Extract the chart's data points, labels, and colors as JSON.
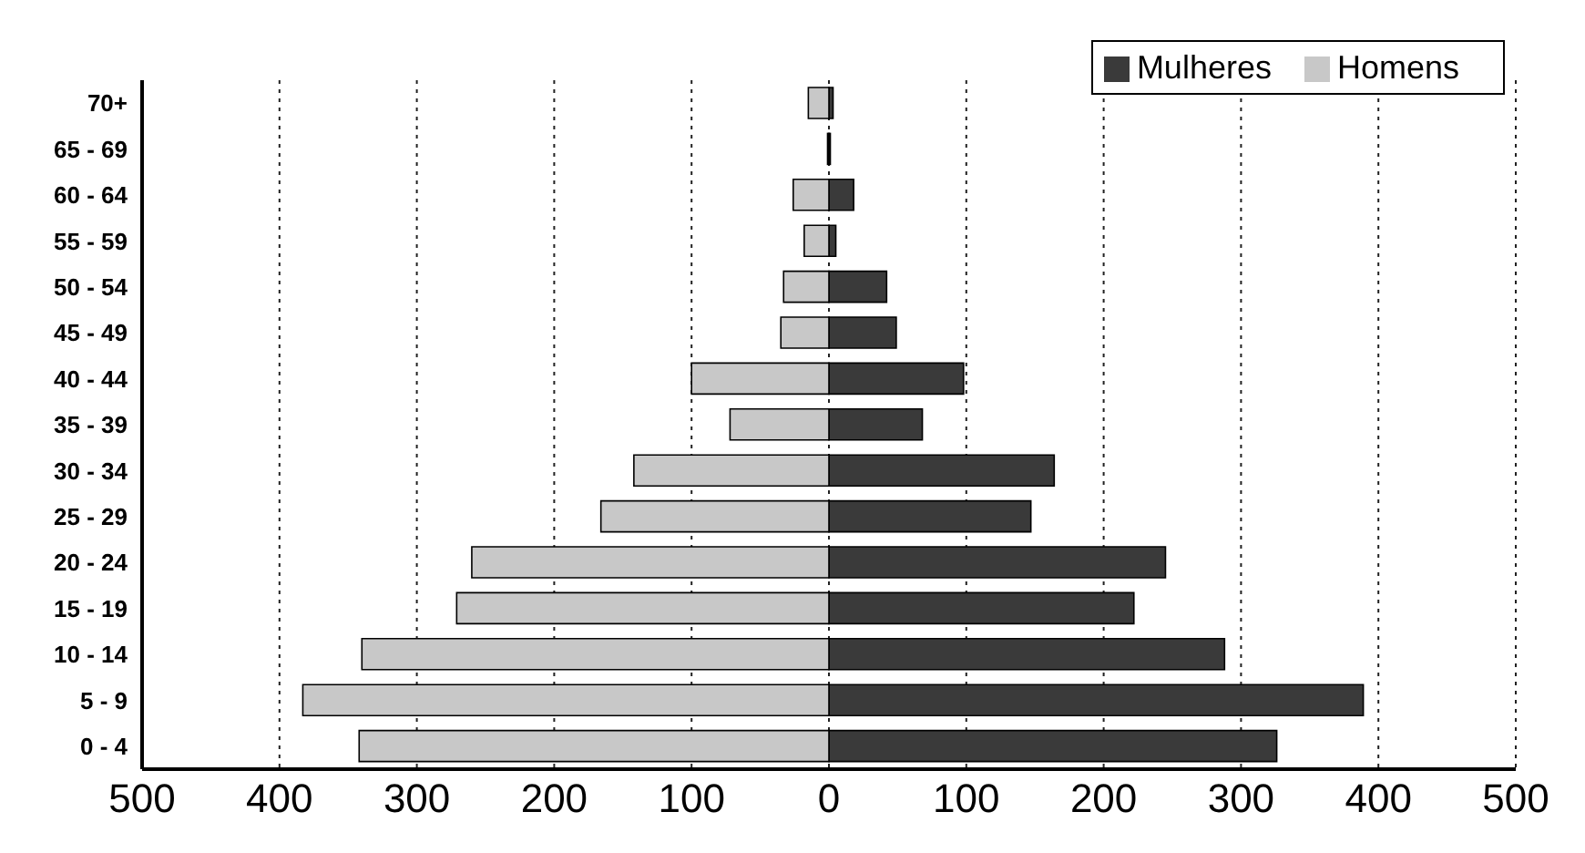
{
  "chart_data": {
    "type": "bar",
    "orientation": "horizontal",
    "stacked": true,
    "categories": [
      "70+",
      "65 - 69",
      "60 - 64",
      "55 - 59",
      "50 - 54",
      "45 - 49",
      "40 - 44",
      "35 - 39",
      "30 - 34",
      "25 - 29",
      "20 - 24",
      "15 - 19",
      "10 - 14",
      "5 - 9",
      "0 - 4"
    ],
    "series": [
      {
        "name": "Mulheres",
        "color": "#3a3a3a",
        "values": [
          3,
          1,
          18,
          5,
          42,
          49,
          98,
          68,
          164,
          147,
          245,
          222,
          288,
          389,
          326
        ]
      },
      {
        "name": "Homens",
        "color": "#c8c8c8",
        "values": [
          -15,
          -1,
          -26,
          -18,
          -33,
          -35,
          -100,
          -72,
          -142,
          -166,
          -260,
          -271,
          -340,
          -383,
          -342
        ]
      }
    ],
    "xlim": [
      -500,
      500
    ],
    "xticks": [
      {
        "value": -500,
        "label": "500"
      },
      {
        "value": -400,
        "label": "400"
      },
      {
        "value": -300,
        "label": "300"
      },
      {
        "value": -200,
        "label": "200"
      },
      {
        "value": -100,
        "label": "100"
      },
      0,
      100,
      200,
      300,
      400,
      500
    ],
    "grid": "x",
    "legend": "top right"
  }
}
